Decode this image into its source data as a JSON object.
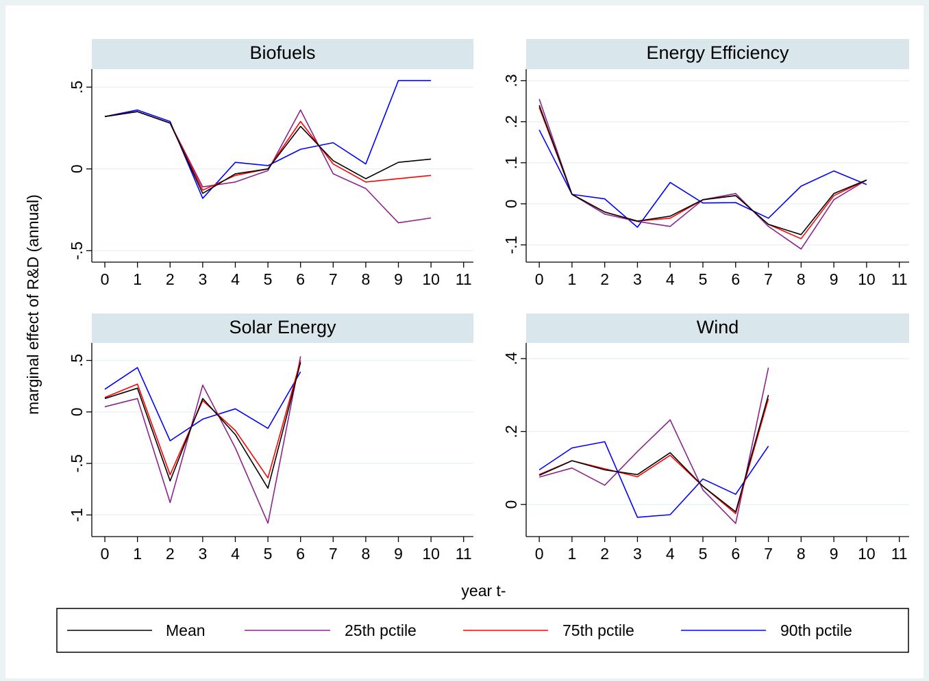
{
  "figure": {
    "ylabel": "marginal effect of R&D (annual)",
    "xlabel": "year t-",
    "legend_position": "bottom"
  },
  "legend": [
    {
      "label": "Mean",
      "color": "#000000"
    },
    {
      "label": "25th pctile",
      "color": "#8b238b"
    },
    {
      "label": "75th pctile",
      "color": "#ff0000"
    },
    {
      "label": "90th pctile",
      "color": "#0000ff"
    }
  ],
  "chart_data": [
    {
      "type": "line",
      "title": "Biofuels",
      "x": [
        0,
        1,
        2,
        3,
        4,
        5,
        6,
        7,
        8,
        9,
        10
      ],
      "xticks": [
        0,
        1,
        2,
        3,
        4,
        5,
        6,
        7,
        8,
        9,
        10,
        11
      ],
      "xticklabels": [
        "0",
        "1",
        "2",
        "3",
        "4",
        "5",
        "6",
        "7",
        "8",
        "9",
        "10",
        "11"
      ],
      "yticks": [
        -0.5,
        0,
        0.5
      ],
      "yticklabels": [
        "-.5",
        "0",
        ".5"
      ],
      "xlim": [
        -0.4,
        11.3
      ],
      "ylim": [
        -0.57,
        0.61
      ],
      "grid": true,
      "series": [
        {
          "name": "Mean",
          "values": [
            0.32,
            0.35,
            0.28,
            -0.15,
            -0.03,
            0.0,
            0.26,
            0.05,
            -0.06,
            0.04,
            0.06
          ]
        },
        {
          "name": "25th pctile",
          "values": [
            0.32,
            0.35,
            0.28,
            -0.11,
            -0.08,
            -0.01,
            0.36,
            -0.03,
            -0.12,
            -0.33,
            -0.3
          ]
        },
        {
          "name": "75th pctile",
          "values": [
            0.32,
            0.35,
            0.28,
            -0.13,
            -0.04,
            0.0,
            0.29,
            0.03,
            -0.08,
            -0.06,
            -0.04
          ]
        },
        {
          "name": "90th pctile",
          "values": [
            0.32,
            0.36,
            0.29,
            -0.18,
            0.04,
            0.02,
            0.12,
            0.16,
            0.03,
            0.54,
            0.54
          ]
        }
      ]
    },
    {
      "type": "line",
      "title": "Energy Efficiency",
      "x": [
        0,
        1,
        2,
        3,
        4,
        5,
        6,
        7,
        8,
        9,
        10
      ],
      "xticks": [
        0,
        1,
        2,
        3,
        4,
        5,
        6,
        7,
        8,
        9,
        10,
        11
      ],
      "xticklabels": [
        "0",
        "1",
        "2",
        "3",
        "4",
        "5",
        "6",
        "7",
        "8",
        "9",
        "10",
        "11"
      ],
      "yticks": [
        -0.1,
        0,
        0.1,
        0.2,
        0.3
      ],
      "yticklabels": [
        "-.1",
        "0",
        ".1",
        ".2",
        ".3"
      ],
      "xlim": [
        -0.4,
        11.3
      ],
      "ylim": [
        -0.142,
        0.328
      ],
      "grid": true,
      "series": [
        {
          "name": "Mean",
          "values": [
            0.24,
            0.023,
            -0.02,
            -0.042,
            -0.03,
            0.01,
            0.02,
            -0.05,
            -0.075,
            0.025,
            0.058
          ]
        },
        {
          "name": "25th pctile",
          "values": [
            0.255,
            0.023,
            -0.025,
            -0.043,
            -0.055,
            0.01,
            0.025,
            -0.055,
            -0.11,
            0.01,
            0.058
          ]
        },
        {
          "name": "75th pctile",
          "values": [
            0.235,
            0.023,
            -0.02,
            -0.042,
            -0.035,
            0.01,
            0.02,
            -0.05,
            -0.085,
            0.02,
            0.058
          ]
        },
        {
          "name": "90th pctile",
          "values": [
            0.18,
            0.023,
            0.012,
            -0.057,
            0.052,
            0.002,
            0.003,
            -0.035,
            0.043,
            0.08,
            0.047
          ]
        }
      ]
    },
    {
      "type": "line",
      "title": "Solar Energy",
      "x": [
        0,
        1,
        2,
        3,
        4,
        5,
        6
      ],
      "xticks": [
        0,
        1,
        2,
        3,
        4,
        5,
        6,
        7,
        8,
        9,
        10,
        11
      ],
      "xticklabels": [
        "0",
        "1",
        "2",
        "3",
        "4",
        "5",
        "6",
        "7",
        "8",
        "9",
        "10",
        "11"
      ],
      "yticks": [
        -1,
        -0.5,
        0,
        0.5
      ],
      "yticklabels": [
        "-1",
        "-.5",
        "0",
        ".5"
      ],
      "xlim": [
        -0.4,
        11.3
      ],
      "ylim": [
        -1.21,
        0.67
      ],
      "grid": true,
      "series": [
        {
          "name": "Mean",
          "values": [
            0.13,
            0.23,
            -0.67,
            0.13,
            -0.22,
            -0.74,
            0.48
          ]
        },
        {
          "name": "25th pctile",
          "values": [
            0.05,
            0.13,
            -0.88,
            0.26,
            -0.35,
            -1.08,
            0.54
          ]
        },
        {
          "name": "75th pctile",
          "values": [
            0.14,
            0.27,
            -0.61,
            0.11,
            -0.18,
            -0.64,
            0.5
          ]
        },
        {
          "name": "90th pctile",
          "values": [
            0.22,
            0.43,
            -0.28,
            -0.07,
            0.03,
            -0.16,
            0.39
          ]
        }
      ]
    },
    {
      "type": "line",
      "title": "Wind",
      "x": [
        0,
        1,
        2,
        3,
        4,
        5,
        6,
        7
      ],
      "xticks": [
        0,
        1,
        2,
        3,
        4,
        5,
        6,
        7,
        8,
        9,
        10,
        11
      ],
      "xticklabels": [
        "0",
        "1",
        "2",
        "3",
        "4",
        "5",
        "6",
        "7",
        "8",
        "9",
        "10",
        "11"
      ],
      "yticks": [
        0,
        0.2,
        0.4
      ],
      "yticklabels": [
        "0",
        ".2",
        ".4"
      ],
      "xlim": [
        -0.4,
        11.3
      ],
      "ylim": [
        -0.088,
        0.443
      ],
      "grid": true,
      "series": [
        {
          "name": "Mean",
          "values": [
            0.08,
            0.12,
            0.095,
            0.082,
            0.142,
            0.05,
            -0.02,
            0.3
          ]
        },
        {
          "name": "25th pctile",
          "values": [
            0.075,
            0.1,
            0.053,
            0.145,
            0.232,
            0.04,
            -0.052,
            0.375
          ]
        },
        {
          "name": "75th pctile",
          "values": [
            0.082,
            0.12,
            0.098,
            0.076,
            0.135,
            0.05,
            -0.025,
            0.29
          ]
        },
        {
          "name": "90th pctile",
          "values": [
            0.095,
            0.155,
            0.172,
            -0.035,
            -0.028,
            0.07,
            0.028,
            0.16
          ]
        }
      ]
    }
  ]
}
